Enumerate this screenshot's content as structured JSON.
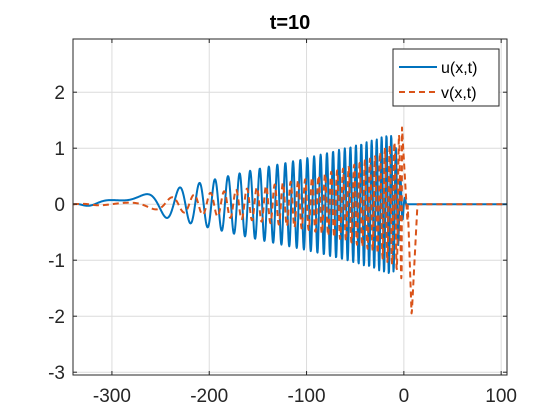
{
  "chart_data": {
    "type": "line",
    "title": "t=10",
    "xlabel": "",
    "ylabel": "",
    "xlim": [
      -340,
      106
    ],
    "ylim": [
      -3.05,
      2.95
    ],
    "xticks": [
      -300,
      -200,
      -100,
      0,
      100
    ],
    "yticks": [
      -3,
      -2,
      -1,
      0,
      1,
      2
    ],
    "xtick_labels": [
      "-300",
      "-200",
      "-100",
      "0",
      "100"
    ],
    "ytick_labels": [
      "-3",
      "-2",
      "-1",
      "0",
      "1",
      "2"
    ],
    "grid": true,
    "legend_position": "top-right",
    "series": [
      {
        "name": "u(x,t)",
        "color": "#0072BD",
        "style": "solid",
        "description": "rapidly oscillating wave train whose amplitude grows from about 0 at x=-340 to about 1.25 near x=-10, then decays to 0 by x=5 and stays flat",
        "envelope_x": [
          -340,
          -300,
          -250,
          -200,
          -150,
          -100,
          -60,
          -30,
          -15,
          -10,
          -5,
          0,
          5,
          106
        ],
        "envelope_amplitude": [
          0.0,
          0.08,
          0.22,
          0.42,
          0.63,
          0.82,
          1.0,
          1.15,
          1.25,
          1.2,
          0.65,
          0.15,
          0.0,
          0.0
        ],
        "extrema_near_front": [
          {
            "x": -12,
            "y": 1.25
          },
          {
            "x": -15,
            "y": -1.2
          },
          {
            "x": -3,
            "y": -0.6
          }
        ]
      },
      {
        "name": "v(x,t)",
        "color": "#D95319",
        "style": "dashed",
        "description": "dashed oscillating wave train with smaller amplitude in the tail, growing toward the front, with a large peak near x=0 and a deep trough near x=8",
        "envelope_x": [
          -340,
          -300,
          -250,
          -200,
          -150,
          -100,
          -60,
          -30,
          -20,
          -10,
          0
        ],
        "envelope_amplitude": [
          0.0,
          0.03,
          0.1,
          0.2,
          0.3,
          0.45,
          0.65,
          0.85,
          1.0,
          1.1,
          1.4
        ],
        "extrema_near_front": [
          {
            "x": 0,
            "y": 1.4
          },
          {
            "x": 8,
            "y": -2.0
          },
          {
            "x": -8,
            "y": -1.2
          },
          {
            "x": -5,
            "y": 1.1
          }
        ]
      }
    ]
  }
}
